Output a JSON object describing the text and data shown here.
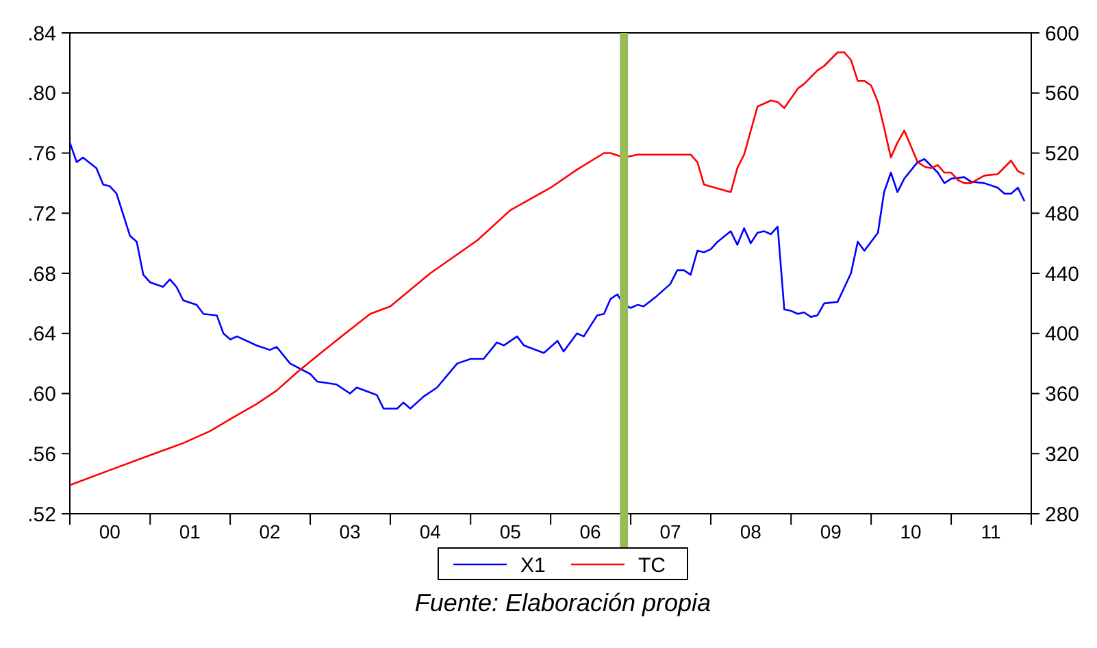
{
  "chart_data": {
    "type": "line",
    "annotations": [
      "Fuente: Elaboración propia"
    ],
    "xlim": [
      "2000-01",
      "2012-01"
    ],
    "xticks": [
      {
        "value": "2000-01",
        "label": null
      },
      {
        "value": "2000-07",
        "label": "00"
      },
      {
        "value": "2001-01",
        "label": null
      },
      {
        "value": "2001-07",
        "label": "01"
      },
      {
        "value": "2002-01",
        "label": null
      },
      {
        "value": "2002-07",
        "label": "02"
      },
      {
        "value": "2003-01",
        "label": null
      },
      {
        "value": "2003-07",
        "label": "03"
      },
      {
        "value": "2004-01",
        "label": null
      },
      {
        "value": "2004-07",
        "label": "04"
      },
      {
        "value": "2005-01",
        "label": null
      },
      {
        "value": "2005-07",
        "label": "05"
      },
      {
        "value": "2006-01",
        "label": null
      },
      {
        "value": "2006-07",
        "label": "06"
      },
      {
        "value": "2007-01",
        "label": null
      },
      {
        "value": "2007-07",
        "label": "07"
      },
      {
        "value": "2008-01",
        "label": null
      },
      {
        "value": "2008-07",
        "label": "08"
      },
      {
        "value": "2009-01",
        "label": null
      },
      {
        "value": "2009-07",
        "label": "09"
      },
      {
        "value": "2010-01",
        "label": null
      },
      {
        "value": "2010-07",
        "label": "10"
      },
      {
        "value": "2011-01",
        "label": null
      },
      {
        "value": "2011-07",
        "label": "11"
      },
      {
        "value": "2012-01",
        "label": null
      }
    ],
    "ylim": [
      0.52,
      0.84
    ],
    "yticks": [
      {
        "value": 0.52,
        "label": ".52"
      },
      {
        "value": 0.56,
        "label": ".56"
      },
      {
        "value": 0.6,
        "label": ".60"
      },
      {
        "value": 0.64,
        "label": ".64"
      },
      {
        "value": 0.68,
        "label": ".68"
      },
      {
        "value": 0.72,
        "label": ".72"
      },
      {
        "value": 0.76,
        "label": ".76"
      },
      {
        "value": 0.8,
        "label": ".80"
      },
      {
        "value": 0.84,
        "label": ".84"
      }
    ],
    "y2lim": [
      280,
      600
    ],
    "y2ticks": [
      280,
      320,
      360,
      400,
      440,
      480,
      520,
      560,
      600
    ],
    "grid": false,
    "legend": "bottom",
    "marker": "none",
    "line_style": "solid",
    "ref_lines": [
      {
        "axis": "x",
        "value": "2006-12",
        "label": null,
        "color": "#9bbb59"
      }
    ],
    "series": [
      {
        "name": "X1",
        "color": "#0000ff",
        "x": [
          "2000-01",
          "2000-02",
          "2000-03",
          "2000-05",
          "2000-06",
          "2000-07",
          "2000-08",
          "2000-10",
          "2000-11",
          "2000-12",
          "2001-01",
          "2001-03",
          "2001-04",
          "2001-05",
          "2001-06",
          "2001-08",
          "2001-09",
          "2001-11",
          "2001-12",
          "2002-01",
          "2002-02",
          "2002-05",
          "2002-07",
          "2002-08",
          "2002-10",
          "2003-01",
          "2003-02",
          "2003-05",
          "2003-07",
          "2003-08",
          "2003-11",
          "2003-12",
          "2004-02",
          "2004-03",
          "2004-04",
          "2004-06",
          "2004-08",
          "2004-11",
          "2005-01",
          "2005-03",
          "2005-05",
          "2005-06",
          "2005-08",
          "2005-09",
          "2005-12",
          "2006-02",
          "2006-03",
          "2006-05",
          "2006-06",
          "2006-08",
          "2006-09",
          "2006-10",
          "2006-11",
          "2006-12",
          "2007-01",
          "2007-02",
          "2007-03",
          "2007-05",
          "2007-07",
          "2007-08",
          "2007-09",
          "2007-10",
          "2007-11",
          "2007-12",
          "2008-01",
          "2008-02",
          "2008-04",
          "2008-05",
          "2008-06",
          "2008-07",
          "2008-08",
          "2008-09",
          "2008-10",
          "2008-11",
          "2008-12",
          "2009-01",
          "2009-02",
          "2009-03",
          "2009-04",
          "2009-05",
          "2009-06",
          "2009-08",
          "2009-10",
          "2009-11",
          "2009-12",
          "2010-02",
          "2010-03",
          "2010-04",
          "2010-05",
          "2010-06",
          "2010-08",
          "2010-09",
          "2010-11",
          "2010-12",
          "2011-01",
          "2011-03",
          "2011-04",
          "2011-06",
          "2011-08",
          "2011-09",
          "2011-10",
          "2011-11",
          "2011-12"
        ],
        "values": [
          0.767,
          0.754,
          0.757,
          0.75,
          0.739,
          0.738,
          0.733,
          0.705,
          0.701,
          0.679,
          0.674,
          0.671,
          0.676,
          0.671,
          0.662,
          0.659,
          0.653,
          0.652,
          0.64,
          0.636,
          0.638,
          0.632,
          0.629,
          0.631,
          0.62,
          0.613,
          0.608,
          0.606,
          0.6,
          0.604,
          0.599,
          0.59,
          0.59,
          0.594,
          0.59,
          0.598,
          0.604,
          0.62,
          0.623,
          0.623,
          0.634,
          0.632,
          0.638,
          0.632,
          0.627,
          0.635,
          0.628,
          0.64,
          0.638,
          0.652,
          0.653,
          0.663,
          0.666,
          0.659,
          0.657,
          0.659,
          0.658,
          0.665,
          0.673,
          0.682,
          0.682,
          0.679,
          0.695,
          0.694,
          0.696,
          0.701,
          0.708,
          0.699,
          0.71,
          0.7,
          0.707,
          0.708,
          0.706,
          0.711,
          0.656,
          0.655,
          0.653,
          0.654,
          0.651,
          0.652,
          0.66,
          0.661,
          0.68,
          0.701,
          0.695,
          0.707,
          0.734,
          0.747,
          0.734,
          0.743,
          0.754,
          0.756,
          0.747,
          0.74,
          0.743,
          0.744,
          0.741,
          0.74,
          0.737,
          0.733,
          0.733,
          0.737,
          0.728
        ]
      },
      {
        "name": "TC",
        "color": "#ff0000",
        "axis": "y2",
        "x": [
          "2000-01",
          "2000-07",
          "2001-01",
          "2001-06",
          "2001-10",
          "2002-01",
          "2002-05",
          "2002-08",
          "2002-11",
          "2003-02",
          "2003-06",
          "2003-10",
          "2004-01",
          "2004-07",
          "2005-02",
          "2005-07",
          "2006-01",
          "2006-05",
          "2006-09",
          "2006-10",
          "2006-12",
          "2007-02",
          "2007-10",
          "2007-11",
          "2007-12",
          "2008-04",
          "2008-05",
          "2008-06",
          "2008-08",
          "2008-10",
          "2008-11",
          "2008-12",
          "2009-02",
          "2009-03",
          "2009-05",
          "2009-06",
          "2009-08",
          "2009-09",
          "2009-10",
          "2009-11",
          "2009-12",
          "2010-01",
          "2010-02",
          "2010-03",
          "2010-04",
          "2010-05",
          "2010-06",
          "2010-08",
          "2010-09",
          "2010-10",
          "2010-11",
          "2010-12",
          "2011-01",
          "2011-02",
          "2011-03",
          "2011-04",
          "2011-06",
          "2011-08",
          "2011-10",
          "2011-11",
          "2011-12"
        ],
        "values": [
          299,
          309,
          319,
          327,
          335,
          343,
          353,
          362,
          374,
          385,
          399,
          413,
          418,
          440,
          462,
          482,
          497,
          509,
          520,
          520,
          517,
          519,
          519,
          514,
          499,
          494,
          510,
          519,
          551,
          555,
          554,
          550,
          563,
          566,
          575,
          578,
          587,
          587,
          582,
          568,
          568,
          565,
          554,
          537,
          517,
          527,
          535,
          514,
          511,
          510,
          512,
          507,
          507,
          502,
          500,
          500,
          505,
          506,
          515,
          508,
          506
        ]
      }
    ]
  }
}
